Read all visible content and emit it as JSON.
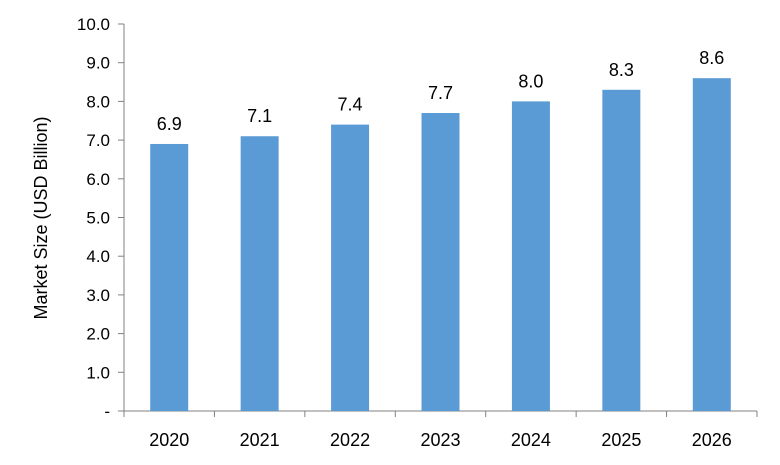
{
  "chart_data": {
    "type": "bar",
    "title": "",
    "xlabel": "",
    "ylabel": "Market Size (USD Billion)",
    "categories": [
      "2020",
      "2021",
      "2022",
      "2023",
      "2024",
      "2025",
      "2026"
    ],
    "values": [
      6.9,
      7.1,
      7.4,
      7.7,
      8.0,
      8.3,
      8.6
    ],
    "data_labels": [
      "6.9",
      "7.1",
      "7.4",
      "7.7",
      "8.0",
      "8.3",
      "8.6"
    ],
    "ylim": [
      0,
      10
    ],
    "yticks": [
      0,
      1,
      2,
      3,
      4,
      5,
      6,
      7,
      8,
      9,
      10
    ],
    "ytick_labels": [
      "-",
      "1.0",
      "2.0",
      "3.0",
      "4.0",
      "5.0",
      "6.0",
      "7.0",
      "8.0",
      "9.0",
      "10.0"
    ],
    "grid": false,
    "legend": "none",
    "bar_color": "#5B9BD5"
  }
}
